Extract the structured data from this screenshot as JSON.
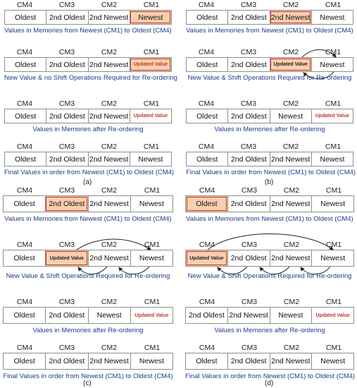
{
  "headers": [
    "CM4",
    "CM3",
    "CM2",
    "CM1"
  ],
  "labels": {
    "oldest": "Oldest",
    "second_oldest": "2nd Oldest",
    "second_newest": "2nd Newest",
    "newest": "Newest",
    "updated": "Updated Value"
  },
  "captions": {
    "initial": "Values in Memories from Newest (CM1) to Oldest (CM4)",
    "no_shift": "New Value & no Shift Operations Required for Re-ordering",
    "shift": "New Value & Shift Operations Required for Re-ordering",
    "after": "Values in Memories after Re-ordering",
    "final": "Final Values in order from Newest (CM1) to Oldest (CM4)"
  },
  "panel_labels": [
    "(a)",
    "(b)",
    "(c)",
    "(d)"
  ],
  "colors": {
    "highlight_fill": "#f9cfae",
    "highlight_border": "#c0392b",
    "caption": "#1f3a8a"
  }
}
